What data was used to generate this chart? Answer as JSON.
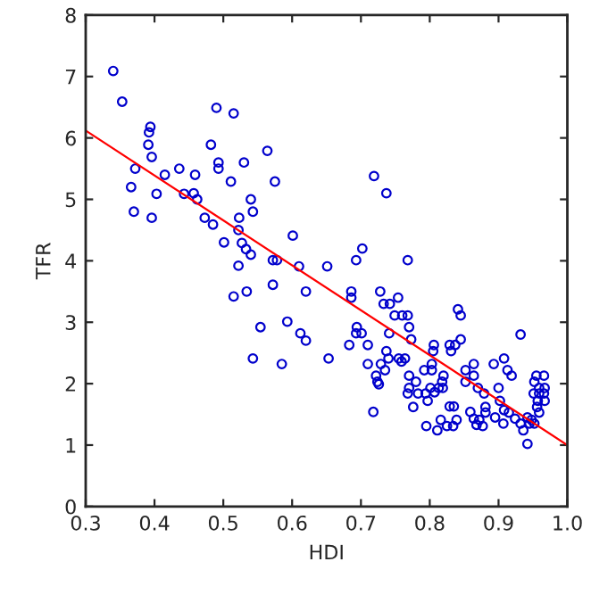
{
  "chart_data": {
    "type": "scatter",
    "xlabel": "HDI",
    "ylabel": "TFR",
    "xlim": [
      0.3,
      1.0
    ],
    "ylim": [
      0,
      8
    ],
    "xticks": [
      {
        "value": 0.3,
        "label": "0.3"
      },
      {
        "value": 0.4,
        "label": "0.4"
      },
      {
        "value": 0.5,
        "label": "0.5"
      },
      {
        "value": 0.6,
        "label": "0.6"
      },
      {
        "value": 0.7,
        "label": "0.7"
      },
      {
        "value": 0.8,
        "label": "0.8"
      },
      {
        "value": 0.9,
        "label": "0.9"
      },
      {
        "value": 1.0,
        "label": "1.0"
      }
    ],
    "yticks": [
      0,
      1,
      2,
      3,
      4,
      5,
      6,
      7,
      8
    ],
    "grid": false,
    "legend": false,
    "series": [
      {
        "color": "#0000cc",
        "marker": "circle",
        "x": [
          0.34,
          0.353,
          0.394,
          0.392,
          0.391,
          0.396,
          0.372,
          0.366,
          0.403,
          0.37,
          0.396,
          0.415,
          0.436,
          0.459,
          0.443,
          0.457,
          0.462,
          0.473,
          0.485,
          0.482,
          0.49,
          0.515,
          0.493,
          0.493,
          0.511,
          0.53,
          0.564,
          0.575,
          0.54,
          0.543,
          0.523,
          0.522,
          0.501,
          0.527,
          0.533,
          0.54,
          0.522,
          0.572,
          0.578,
          0.601,
          0.61,
          0.651,
          0.515,
          0.534,
          0.572,
          0.62,
          0.554,
          0.593,
          0.612,
          0.62,
          0.543,
          0.585,
          0.653,
          0.719,
          0.737,
          0.702,
          0.693,
          0.768,
          0.686,
          0.686,
          0.728,
          0.754,
          0.733,
          0.742,
          0.749,
          0.76,
          0.768,
          0.77,
          0.841,
          0.845,
          0.694,
          0.701,
          0.693,
          0.741,
          0.773,
          0.683,
          0.71,
          0.737,
          0.806,
          0.829,
          0.837,
          0.845,
          0.805,
          0.831,
          0.932,
          0.71,
          0.729,
          0.74,
          0.755,
          0.764,
          0.759,
          0.803,
          0.803,
          0.82,
          0.864,
          0.893,
          0.908,
          0.913,
          0.919,
          0.722,
          0.735,
          0.77,
          0.792,
          0.724,
          0.726,
          0.78,
          0.801,
          0.852,
          0.864,
          0.852,
          0.87,
          0.879,
          0.77,
          0.783,
          0.794,
          0.768,
          0.819,
          0.818,
          0.813,
          0.807,
          0.797,
          0.776,
          0.718,
          0.9,
          0.902,
          0.908,
          0.895,
          0.907,
          0.915,
          0.924,
          0.932,
          0.942,
          0.952,
          0.955,
          0.966,
          0.952,
          0.959,
          0.967,
          0.951,
          0.959,
          0.966,
          0.957,
          0.967,
          0.956,
          0.959,
          0.948,
          0.945,
          0.936,
          0.942,
          0.795,
          0.811,
          0.816,
          0.825,
          0.834,
          0.839,
          0.829,
          0.835,
          0.859,
          0.864,
          0.868,
          0.872,
          0.877,
          0.881,
          0.881
        ],
        "values": [
          7.09,
          6.59,
          6.18,
          6.09,
          5.89,
          5.69,
          5.5,
          5.2,
          5.09,
          4.8,
          4.7,
          5.4,
          5.5,
          5.4,
          5.09,
          5.1,
          5.0,
          4.7,
          4.59,
          5.89,
          6.49,
          6.4,
          5.6,
          5.5,
          5.29,
          5.6,
          5.79,
          5.29,
          5.0,
          4.8,
          4.7,
          4.5,
          4.3,
          4.29,
          4.19,
          4.1,
          3.92,
          4.01,
          4.01,
          4.41,
          3.91,
          3.91,
          3.42,
          3.5,
          3.61,
          3.5,
          2.92,
          3.01,
          2.82,
          2.7,
          2.41,
          2.32,
          2.41,
          5.38,
          5.1,
          4.2,
          4.01,
          4.01,
          3.5,
          3.4,
          3.5,
          3.4,
          3.3,
          3.3,
          3.11,
          3.11,
          3.11,
          2.92,
          3.21,
          3.11,
          2.92,
          2.82,
          2.82,
          2.82,
          2.72,
          2.63,
          2.63,
          2.53,
          2.63,
          2.63,
          2.63,
          2.72,
          2.53,
          2.53,
          2.8,
          2.32,
          2.32,
          2.41,
          2.41,
          2.41,
          2.36,
          2.32,
          2.22,
          2.13,
          2.32,
          2.32,
          2.41,
          2.22,
          2.13,
          2.13,
          2.22,
          2.13,
          2.22,
          2.03,
          1.99,
          2.03,
          1.93,
          2.22,
          2.13,
          2.03,
          1.93,
          1.84,
          1.93,
          1.84,
          1.84,
          1.84,
          1.93,
          2.03,
          1.93,
          1.86,
          1.72,
          1.62,
          1.54,
          1.93,
          1.72,
          1.57,
          1.45,
          1.35,
          1.53,
          1.43,
          1.35,
          1.45,
          1.35,
          2.13,
          2.13,
          2.03,
          1.93,
          1.93,
          1.84,
          1.84,
          1.84,
          1.72,
          1.72,
          1.62,
          1.53,
          1.41,
          1.35,
          1.24,
          1.02,
          1.31,
          1.24,
          1.41,
          1.31,
          1.31,
          1.41,
          1.63,
          1.63,
          1.54,
          1.43,
          1.33,
          1.41,
          1.31,
          1.62,
          1.53
        ]
      },
      {
        "type": "line",
        "color": "#ff0000",
        "line_style": "solid",
        "marker": "none",
        "x": [
          0.3,
          1.0
        ],
        "values": [
          6.12,
          1.0
        ]
      }
    ]
  }
}
